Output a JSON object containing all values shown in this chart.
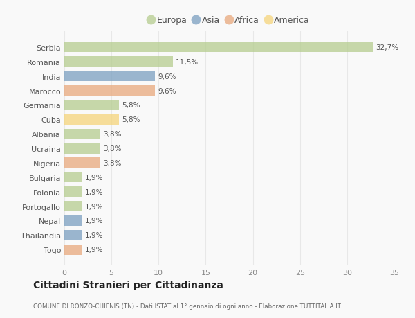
{
  "countries": [
    "Serbia",
    "Romania",
    "India",
    "Marocco",
    "Germania",
    "Cuba",
    "Albania",
    "Ucraina",
    "Nigeria",
    "Bulgaria",
    "Polonia",
    "Portogallo",
    "Nepal",
    "Thailandia",
    "Togo"
  ],
  "values": [
    32.7,
    11.5,
    9.6,
    9.6,
    5.8,
    5.8,
    3.8,
    3.8,
    3.8,
    1.9,
    1.9,
    1.9,
    1.9,
    1.9,
    1.9
  ],
  "labels": [
    "32,7%",
    "11,5%",
    "9,6%",
    "9,6%",
    "5,8%",
    "5,8%",
    "3,8%",
    "3,8%",
    "3,8%",
    "1,9%",
    "1,9%",
    "1,9%",
    "1,9%",
    "1,9%",
    "1,9%"
  ],
  "continents": [
    "Europa",
    "Europa",
    "Asia",
    "Africa",
    "Europa",
    "America",
    "Europa",
    "Europa",
    "Africa",
    "Europa",
    "Europa",
    "Europa",
    "Asia",
    "Asia",
    "Africa"
  ],
  "colors": {
    "Europa": "#b5cc8e",
    "Asia": "#7a9fc0",
    "Africa": "#e8a87c",
    "America": "#f5d47a"
  },
  "legend_order": [
    "Europa",
    "Asia",
    "Africa",
    "America"
  ],
  "title": "Cittadini Stranieri per Cittadinanza",
  "subtitle": "COMUNE DI RONZO-CHIENIS (TN) - Dati ISTAT al 1° gennaio di ogni anno - Elaborazione TUTTITALIA.IT",
  "xlim": [
    0,
    35
  ],
  "xticks": [
    0,
    5,
    10,
    15,
    20,
    25,
    30,
    35
  ],
  "bg_color": "#f9f9f9",
  "grid_color": "#e8e8e8",
  "bar_alpha": 0.75
}
